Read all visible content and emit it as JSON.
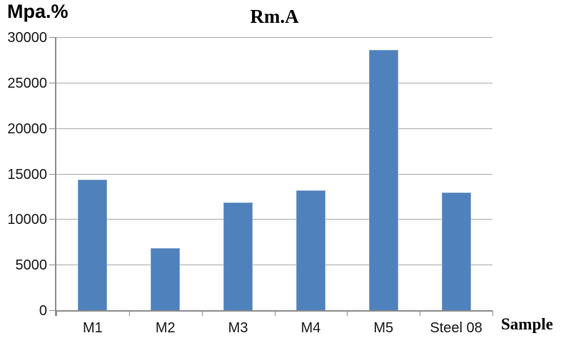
{
  "chart_data": {
    "type": "bar",
    "title": "Rm.A",
    "y_axis_label": "Mpa.%",
    "x_axis_label": "Sample",
    "categories": [
      "M1",
      "M2",
      "M3",
      "M4",
      "M5",
      "Steel 08"
    ],
    "values": [
      14400,
      6900,
      11900,
      13200,
      28700,
      13000
    ],
    "ylim": [
      0,
      30000
    ],
    "y_ticks": [
      0,
      5000,
      10000,
      15000,
      20000,
      25000,
      30000
    ],
    "grid": "horizontal-only",
    "legend": "none",
    "colors": {
      "bar_fill": "#4f81bd",
      "bar_edge": "#84a5cd",
      "axis": "#8e8e8e",
      "gridline": "#ababab",
      "tick_text": "#1a1a1a",
      "title_text": "#000000",
      "background": "#ffffff"
    }
  }
}
